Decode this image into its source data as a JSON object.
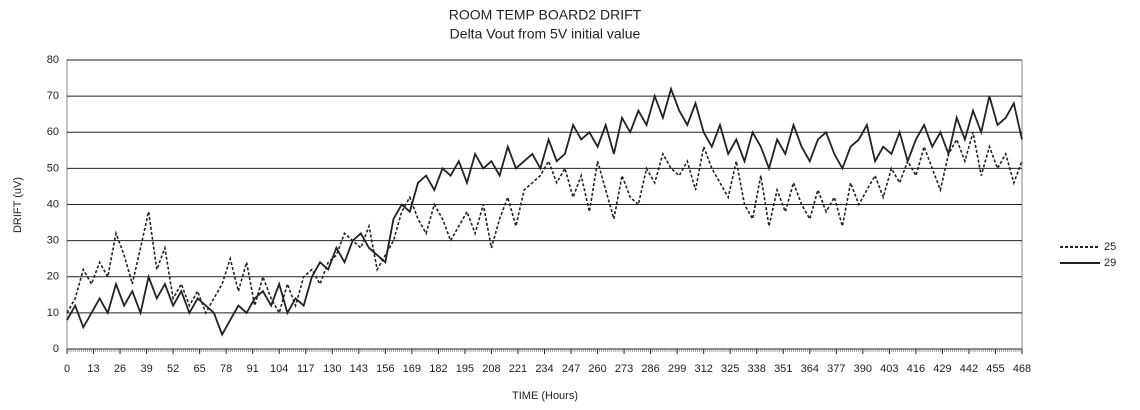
{
  "chart_data": {
    "type": "line",
    "title": "ROOM TEMP BOARD2 DRIFT",
    "subtitle": "Delta Vout from 5V initial value",
    "x_label": "TIME (Hours)",
    "y_label": "DRIFT (uV)",
    "x": [
      0,
      4,
      8,
      12,
      16,
      20,
      24,
      28,
      32,
      36,
      40,
      44,
      48,
      52,
      56,
      60,
      64,
      68,
      72,
      76,
      80,
      84,
      88,
      92,
      96,
      100,
      104,
      108,
      112,
      116,
      120,
      124,
      128,
      132,
      136,
      140,
      144,
      148,
      152,
      156,
      160,
      164,
      168,
      172,
      176,
      180,
      184,
      188,
      192,
      196,
      200,
      204,
      208,
      212,
      216,
      220,
      224,
      228,
      232,
      236,
      240,
      244,
      248,
      252,
      256,
      260,
      264,
      268,
      272,
      276,
      280,
      284,
      288,
      292,
      296,
      300,
      304,
      308,
      312,
      316,
      320,
      324,
      328,
      332,
      336,
      340,
      344,
      348,
      352,
      356,
      360,
      364,
      368,
      372,
      376,
      380,
      384,
      388,
      392,
      396,
      400,
      404,
      408,
      412,
      416,
      420,
      424,
      428,
      432,
      436,
      440,
      444,
      448,
      452,
      456,
      460,
      464,
      468
    ],
    "series": [
      {
        "name": "25",
        "color": "#222222",
        "line_style": "dashed",
        "values": [
          10,
          14,
          22,
          18,
          24,
          20,
          32,
          26,
          18,
          28,
          38,
          22,
          28,
          14,
          18,
          12,
          16,
          10,
          14,
          18,
          25,
          16,
          24,
          12,
          20,
          14,
          10,
          18,
          12,
          20,
          22,
          18,
          24,
          26,
          32,
          30,
          28,
          34,
          22,
          26,
          30,
          38,
          42,
          36,
          32,
          40,
          36,
          30,
          34,
          38,
          32,
          40,
          28,
          36,
          42,
          34,
          44,
          46,
          48,
          52,
          46,
          50,
          42,
          48,
          38,
          52,
          44,
          36,
          48,
          42,
          40,
          50,
          46,
          54,
          50,
          48,
          52,
          44,
          56,
          50,
          46,
          42,
          52,
          40,
          36,
          48,
          34,
          44,
          38,
          46,
          40,
          36,
          44,
          38,
          42,
          34,
          46,
          40,
          44,
          48,
          42,
          50,
          46,
          52,
          48,
          56,
          50,
          44,
          54,
          58,
          52,
          60,
          48,
          56,
          50,
          54,
          46,
          52
        ]
      },
      {
        "name": "29",
        "color": "#222222",
        "line_style": "solid",
        "values": [
          8,
          12,
          6,
          10,
          14,
          10,
          18,
          12,
          16,
          10,
          20,
          14,
          18,
          12,
          16,
          10,
          14,
          12,
          10,
          4,
          8,
          12,
          10,
          14,
          16,
          12,
          18,
          10,
          14,
          12,
          20,
          24,
          22,
          28,
          24,
          30,
          32,
          28,
          26,
          24,
          36,
          40,
          38,
          46,
          48,
          44,
          50,
          48,
          52,
          46,
          54,
          50,
          52,
          48,
          56,
          50,
          52,
          54,
          50,
          58,
          52,
          54,
          62,
          58,
          60,
          56,
          62,
          54,
          64,
          60,
          66,
          62,
          70,
          64,
          72,
          66,
          62,
          68,
          60,
          56,
          62,
          54,
          58,
          52,
          60,
          56,
          50,
          58,
          54,
          62,
          56,
          52,
          58,
          60,
          54,
          50,
          56,
          58,
          62,
          52,
          56,
          54,
          60,
          52,
          58,
          62,
          56,
          60,
          54,
          64,
          58,
          66,
          60,
          70,
          62,
          64,
          68,
          58
        ]
      }
    ],
    "xlim": [
      0,
      468
    ],
    "xticks": [
      0,
      13,
      26,
      39,
      52,
      65,
      78,
      91,
      104,
      117,
      130,
      143,
      156,
      169,
      182,
      195,
      208,
      221,
      234,
      247,
      260,
      273,
      286,
      299,
      312,
      325,
      338,
      351,
      364,
      377,
      390,
      403,
      416,
      429,
      442,
      455,
      468
    ],
    "ylim": [
      0,
      80
    ],
    "yticks": [
      0,
      10,
      20,
      30,
      40,
      50,
      60,
      70,
      80
    ],
    "grid": true,
    "legend": "right"
  }
}
